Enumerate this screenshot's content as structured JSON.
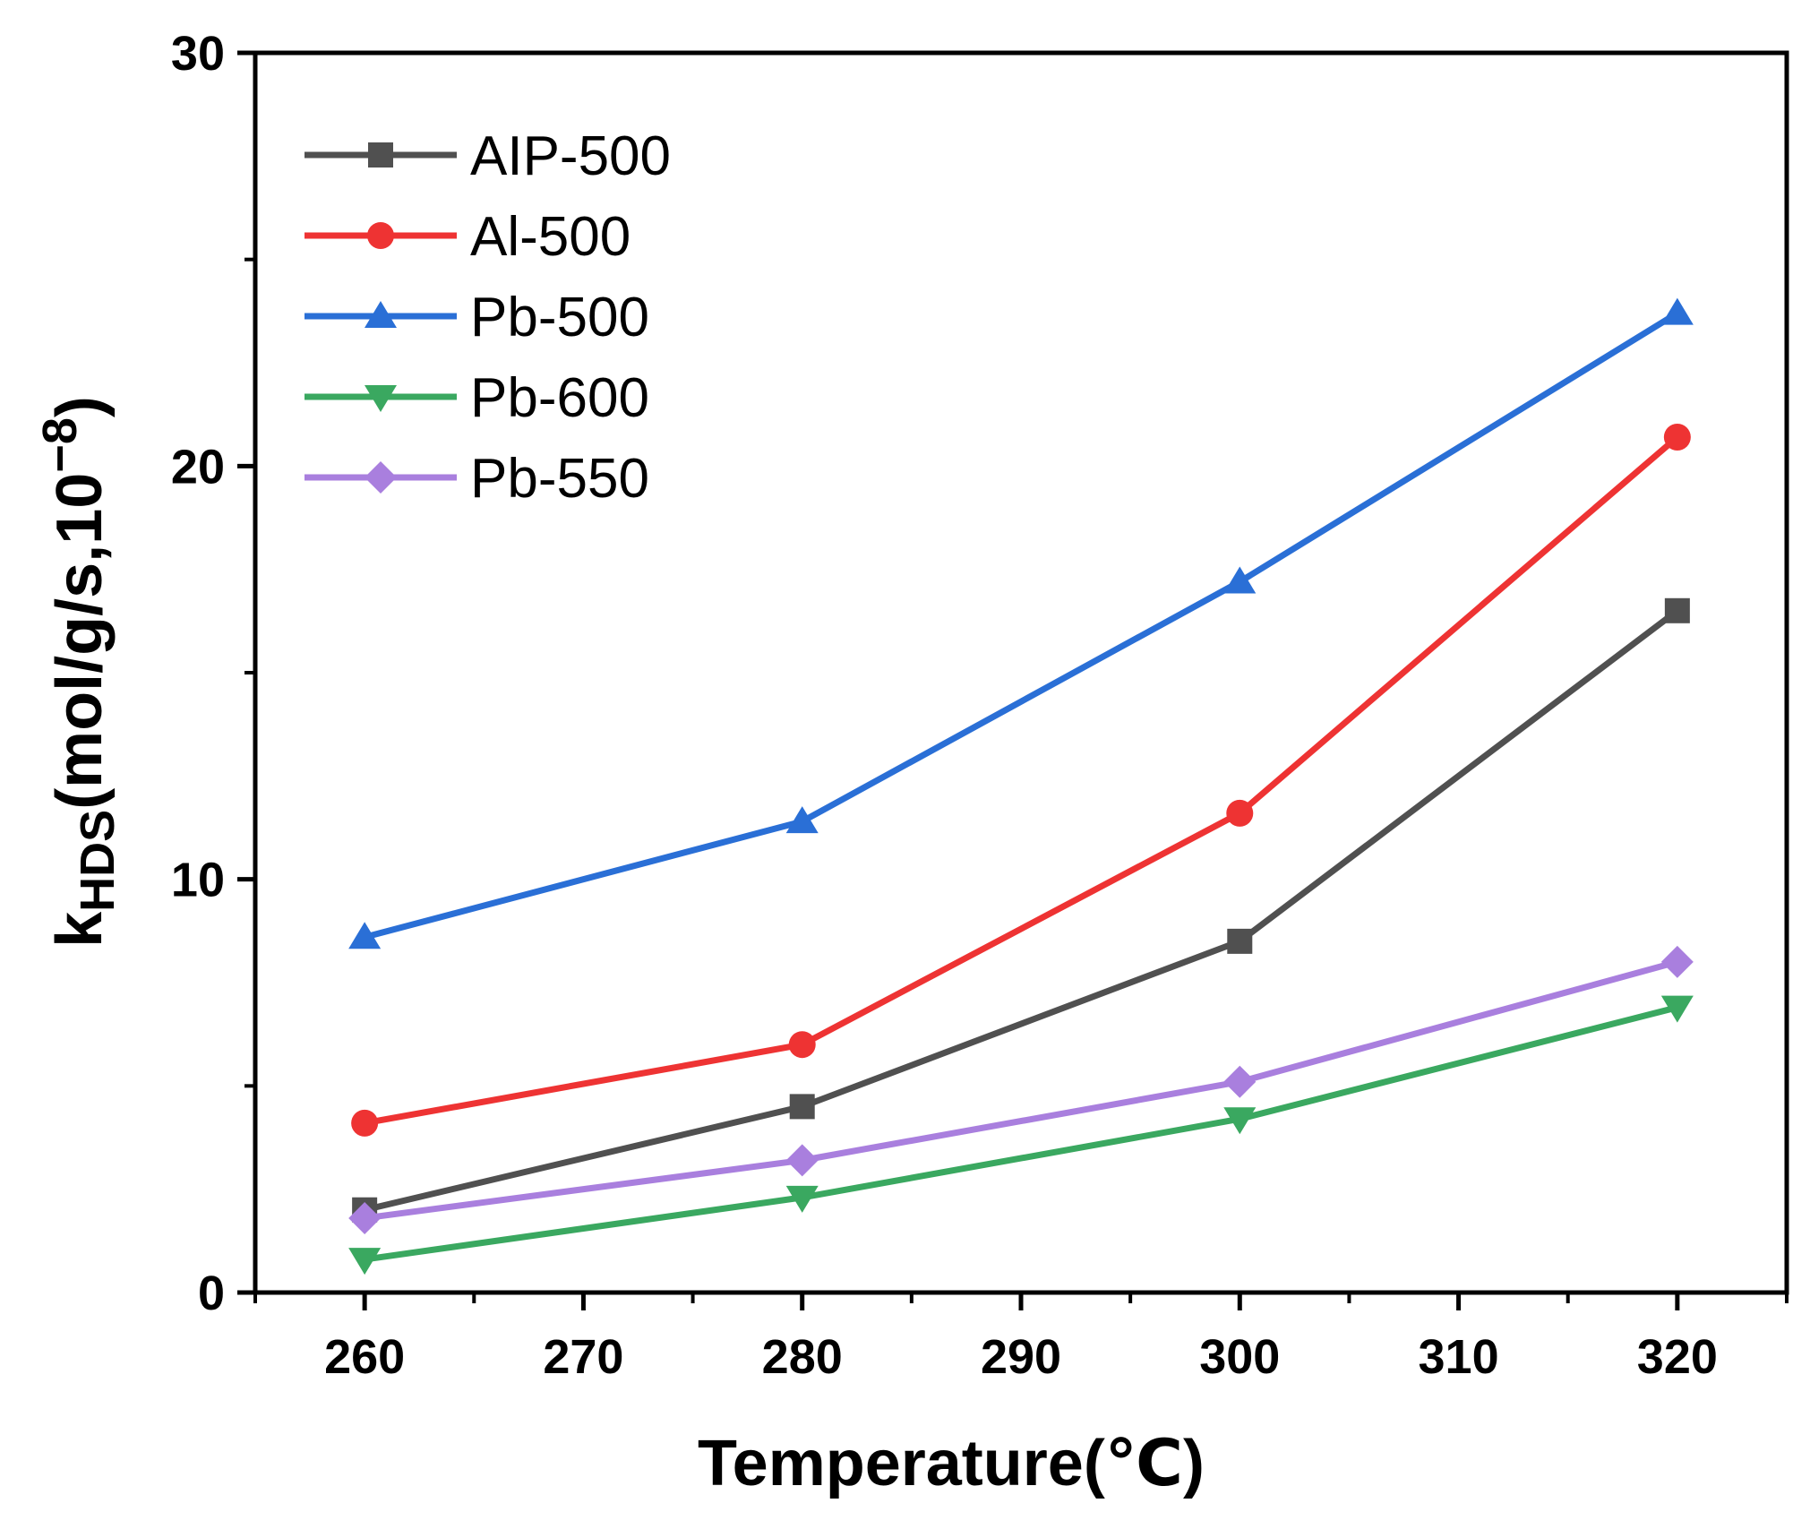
{
  "chart_data": {
    "type": "line",
    "title": "",
    "xlabel": "Temperature(℃)",
    "ylabel_main": "k",
    "ylabel_sub": "HDS",
    "ylabel_rest": "(mol/g/s,10",
    "ylabel_sup": "−8",
    "ylabel_close": ")",
    "x": [
      260,
      280,
      300,
      320
    ],
    "xlim": [
      255,
      325
    ],
    "ylim": [
      0,
      30
    ],
    "xticks": [
      260,
      270,
      280,
      290,
      300,
      310,
      320
    ],
    "xtick_labels": [
      "260",
      "270",
      "280",
      "290",
      "300",
      "310",
      "320"
    ],
    "yticks": [
      0,
      10,
      20,
      30
    ],
    "ytick_labels": [
      "0",
      "10",
      "20",
      "30"
    ],
    "grid": false,
    "legend_position": "top-left",
    "series": [
      {
        "name": "AIP-500",
        "color": "#505050",
        "marker": "square",
        "values": [
          2.0,
          4.5,
          8.5,
          16.5
        ]
      },
      {
        "name": "Al-500",
        "color": "#ee3333",
        "marker": "circle",
        "values": [
          4.1,
          6.0,
          11.6,
          20.7
        ]
      },
      {
        "name": "Pb-500",
        "color": "#2a6fd6",
        "marker": "triangle-up",
        "values": [
          8.6,
          11.4,
          17.2,
          23.7
        ]
      },
      {
        "name": "Pb-600",
        "color": "#3aa860",
        "marker": "triangle-down",
        "values": [
          0.8,
          2.3,
          4.2,
          6.9
        ]
      },
      {
        "name": "Pb-550",
        "color": "#a97fde",
        "marker": "diamond",
        "values": [
          1.8,
          3.2,
          5.1,
          8.0
        ]
      }
    ]
  }
}
